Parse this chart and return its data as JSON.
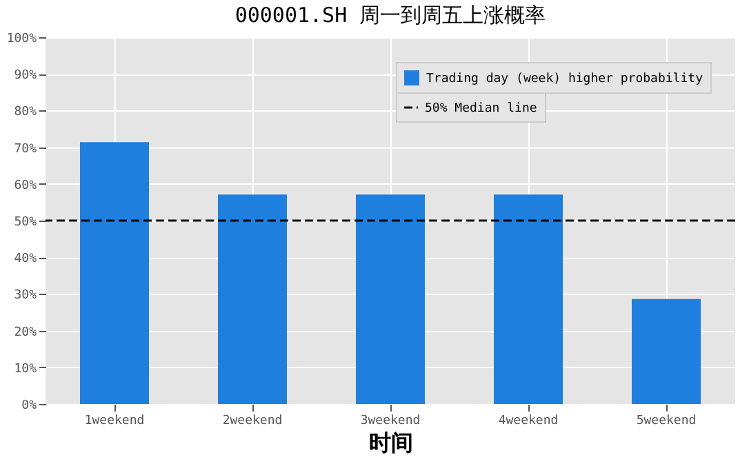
{
  "chart_data": {
    "type": "bar",
    "title": "000001.SH 周一到周五上涨概率",
    "xlabel": "时间",
    "categories": [
      "1weekend",
      "2weekend",
      "3weekend",
      "4weekend",
      "5weekend"
    ],
    "series": [
      {
        "name": "Trading day (week) higher probability",
        "color": "#1f7fdf",
        "values": [
          71.4,
          57.1,
          57.1,
          57.1,
          28.6
        ]
      }
    ],
    "ylim": [
      0,
      100
    ],
    "yticks": [
      {
        "value": 0,
        "label": "0%"
      },
      {
        "value": 10,
        "label": "10%"
      },
      {
        "value": 20,
        "label": "20%"
      },
      {
        "value": 30,
        "label": "30%"
      },
      {
        "value": 40,
        "label": "40%"
      },
      {
        "value": 50,
        "label": "50%"
      },
      {
        "value": 60,
        "label": "60%"
      },
      {
        "value": 70,
        "label": "70%"
      },
      {
        "value": 80,
        "label": "80%"
      },
      {
        "value": 90,
        "label": "90%"
      },
      {
        "value": 100,
        "label": "100%"
      }
    ],
    "ref_lines": [
      {
        "axis": "y",
        "value": 50,
        "label": "50% Median line",
        "color": "#000000",
        "line_style": "dashed"
      }
    ],
    "grid": true,
    "legend": "top right"
  }
}
